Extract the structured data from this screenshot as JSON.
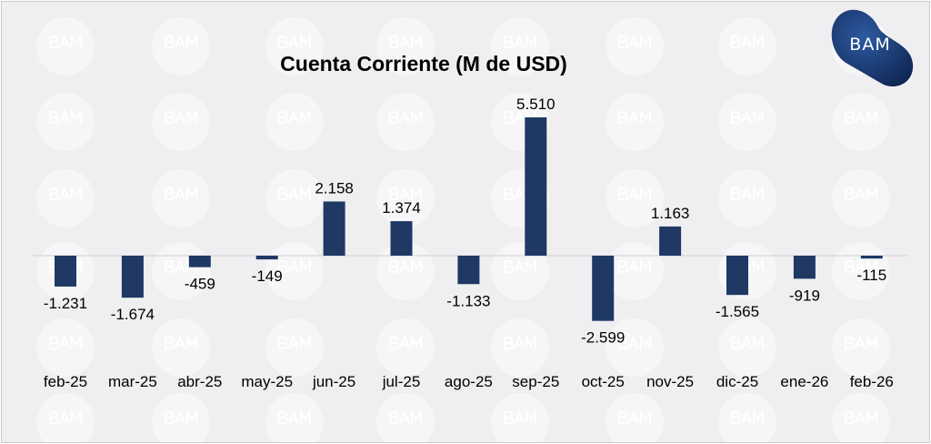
{
  "logo": {
    "text": "BAM"
  },
  "watermark_text": "BAM",
  "colors": {
    "bar": "#1f3864",
    "background": "#efeff1",
    "axis": "#d0d0d4"
  },
  "chart_data": {
    "type": "bar",
    "title": "Cuenta Corriente (M de USD)",
    "xlabel": "",
    "ylabel": "",
    "categories": [
      "feb-25",
      "mar-25",
      "abr-25",
      "may-25",
      "jun-25",
      "jul-25",
      "ago-25",
      "sep-25",
      "oct-25",
      "nov-25",
      "dic-25",
      "ene-26",
      "feb-26"
    ],
    "values": [
      -1231,
      -1674,
      -459,
      -149,
      2158,
      1374,
      -1133,
      5510,
      -2599,
      1163,
      -1565,
      -919,
      -115
    ],
    "labels": [
      "-1.231",
      "-1.674",
      "-459",
      "-149",
      "2.158",
      "1.374",
      "-1.133",
      "5.510",
      "-2.599",
      "1.163",
      "-1.565",
      "-919",
      "-115"
    ],
    "grid": false,
    "legend": "none"
  }
}
